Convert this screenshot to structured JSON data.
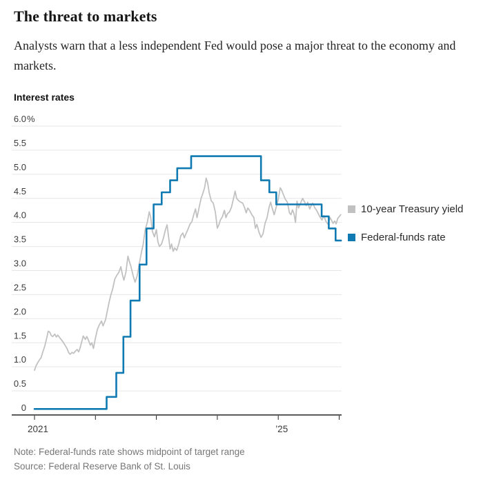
{
  "header": {
    "title": "The threat to markets",
    "subtitle": "Analysts warn that a less independent Fed would pose a major threat to the economy and markets."
  },
  "chart_label": "Interest rates",
  "footer": {
    "note": "Note: Federal-funds rate shows midpoint of target range",
    "source": "Source: Federal Reserve Bank of St. Louis"
  },
  "colors": {
    "treasury_line": "#c1c1c1",
    "fed_funds_line": "#0f7ab1",
    "grid_line": "#e6e6e6",
    "axis_line": "#222222"
  },
  "chart_data": {
    "type": "line",
    "title": "Interest rates",
    "ylabel": "Percent",
    "ylim": [
      0,
      6.0
    ],
    "grid": "horizontal",
    "legend_position": "right",
    "y_axis": {
      "ticks": [
        {
          "value": 6.0,
          "label": "6.0%"
        },
        {
          "value": 5.5,
          "label": "5.5"
        },
        {
          "value": 5.0,
          "label": "5.0"
        },
        {
          "value": 4.5,
          "label": "4.5"
        },
        {
          "value": 4.0,
          "label": "4.0"
        },
        {
          "value": 3.5,
          "label": "3.5"
        },
        {
          "value": 3.0,
          "label": "3.0"
        },
        {
          "value": 2.5,
          "label": "2.5"
        },
        {
          "value": 2.0,
          "label": "2.0"
        },
        {
          "value": 1.5,
          "label": "1.5"
        },
        {
          "value": 1.0,
          "label": "1.0"
        },
        {
          "value": 0.5,
          "label": "0.5"
        },
        {
          "value": 0,
          "label": "0"
        }
      ]
    },
    "x_axis": {
      "unit": "months_since_jan_2021",
      "start_year": 2021,
      "tick_years": [
        2021,
        2022,
        2023,
        2024,
        2025,
        2026
      ],
      "labels": [
        {
          "year": 2021,
          "text": "2021"
        },
        {
          "year": 2025,
          "text": "’25"
        }
      ]
    },
    "series": [
      {
        "name": "10-year Treasury yield",
        "color": "#c1c1c1",
        "points": [
          [
            0,
            0.93
          ],
          [
            0.3,
            1.02
          ],
          [
            0.6,
            1.08
          ],
          [
            1,
            1.15
          ],
          [
            1.3,
            1.19
          ],
          [
            1.6,
            1.3
          ],
          [
            2,
            1.42
          ],
          [
            2.4,
            1.6
          ],
          [
            2.7,
            1.74
          ],
          [
            3,
            1.72
          ],
          [
            3.3,
            1.65
          ],
          [
            3.6,
            1.63
          ],
          [
            4,
            1.68
          ],
          [
            4.3,
            1.62
          ],
          [
            4.6,
            1.66
          ],
          [
            5,
            1.6
          ],
          [
            5.3,
            1.56
          ],
          [
            5.6,
            1.52
          ],
          [
            6,
            1.45
          ],
          [
            6.4,
            1.38
          ],
          [
            6.7,
            1.3
          ],
          [
            7,
            1.26
          ],
          [
            7.4,
            1.3
          ],
          [
            7.7,
            1.28
          ],
          [
            8,
            1.32
          ],
          [
            8.4,
            1.36
          ],
          [
            8.7,
            1.31
          ],
          [
            9,
            1.4
          ],
          [
            9.3,
            1.52
          ],
          [
            9.6,
            1.64
          ],
          [
            10,
            1.57
          ],
          [
            10.3,
            1.63
          ],
          [
            10.6,
            1.56
          ],
          [
            11,
            1.45
          ],
          [
            11.3,
            1.5
          ],
          [
            11.6,
            1.38
          ],
          [
            12,
            1.6
          ],
          [
            12.4,
            1.78
          ],
          [
            12.8,
            1.88
          ],
          [
            13.2,
            1.95
          ],
          [
            13.5,
            1.85
          ],
          [
            14,
            1.98
          ],
          [
            14.3,
            2.14
          ],
          [
            14.7,
            2.35
          ],
          [
            15,
            2.48
          ],
          [
            15.4,
            2.62
          ],
          [
            15.8,
            2.82
          ],
          [
            16.2,
            2.9
          ],
          [
            16.6,
            2.96
          ],
          [
            17,
            3.08
          ],
          [
            17.3,
            2.92
          ],
          [
            17.6,
            2.8
          ],
          [
            18,
            2.96
          ],
          [
            18.4,
            3.3
          ],
          [
            18.7,
            3.18
          ],
          [
            19,
            3.08
          ],
          [
            19.4,
            2.9
          ],
          [
            19.8,
            2.76
          ],
          [
            20.2,
            2.88
          ],
          [
            20.6,
            3.12
          ],
          [
            21,
            3.35
          ],
          [
            21.4,
            3.55
          ],
          [
            21.8,
            3.85
          ],
          [
            22.2,
            4.0
          ],
          [
            22.6,
            4.22
          ],
          [
            22.9,
            4.1
          ],
          [
            23.2,
            3.82
          ],
          [
            23.6,
            3.7
          ],
          [
            24,
            3.85
          ],
          [
            24.3,
            3.6
          ],
          [
            24.6,
            3.5
          ],
          [
            25,
            3.55
          ],
          [
            25.4,
            3.68
          ],
          [
            25.8,
            3.85
          ],
          [
            26.1,
            3.95
          ],
          [
            26.4,
            3.7
          ],
          [
            26.7,
            3.45
          ],
          [
            27,
            3.55
          ],
          [
            27.3,
            3.4
          ],
          [
            27.6,
            3.47
          ],
          [
            28,
            3.42
          ],
          [
            28.4,
            3.55
          ],
          [
            28.8,
            3.72
          ],
          [
            29.2,
            3.78
          ],
          [
            29.5,
            3.68
          ],
          [
            29.8,
            3.76
          ],
          [
            30.2,
            3.85
          ],
          [
            30.6,
            3.96
          ],
          [
            31,
            4.02
          ],
          [
            31.4,
            4.18
          ],
          [
            31.7,
            4.28
          ],
          [
            32,
            4.1
          ],
          [
            32.4,
            4.3
          ],
          [
            32.8,
            4.5
          ],
          [
            33.2,
            4.62
          ],
          [
            33.5,
            4.72
          ],
          [
            33.8,
            4.92
          ],
          [
            34.1,
            4.82
          ],
          [
            34.4,
            4.62
          ],
          [
            34.8,
            4.45
          ],
          [
            35.2,
            4.4
          ],
          [
            35.6,
            4.22
          ],
          [
            36,
            3.88
          ],
          [
            36.3,
            3.95
          ],
          [
            36.6,
            4.05
          ],
          [
            37,
            4.12
          ],
          [
            37.4,
            4.25
          ],
          [
            37.7,
            4.1
          ],
          [
            38,
            4.18
          ],
          [
            38.4,
            4.22
          ],
          [
            38.8,
            4.32
          ],
          [
            39.2,
            4.5
          ],
          [
            39.5,
            4.65
          ],
          [
            39.8,
            4.5
          ],
          [
            40.2,
            4.45
          ],
          [
            40.6,
            4.42
          ],
          [
            41,
            4.4
          ],
          [
            41.4,
            4.3
          ],
          [
            41.7,
            4.2
          ],
          [
            42,
            4.3
          ],
          [
            42.4,
            4.24
          ],
          [
            42.8,
            4.16
          ],
          [
            43.2,
            4.1
          ],
          [
            43.5,
            3.88
          ],
          [
            43.8,
            3.96
          ],
          [
            44.2,
            3.8
          ],
          [
            44.6,
            3.69
          ],
          [
            45,
            3.76
          ],
          [
            45.4,
            3.98
          ],
          [
            45.8,
            4.1
          ],
          [
            46.2,
            4.32
          ],
          [
            46.5,
            4.42
          ],
          [
            46.8,
            4.3
          ],
          [
            47.2,
            4.16
          ],
          [
            47.6,
            4.32
          ],
          [
            48,
            4.48
          ],
          [
            48.4,
            4.72
          ],
          [
            48.7,
            4.66
          ],
          [
            49,
            4.58
          ],
          [
            49.4,
            4.48
          ],
          [
            49.8,
            4.42
          ],
          [
            50.2,
            4.2
          ],
          [
            50.5,
            4.16
          ],
          [
            50.8,
            4.26
          ],
          [
            51.1,
            4.18
          ],
          [
            51.4,
            4.0
          ],
          [
            51.7,
            4.44
          ],
          [
            52,
            4.3
          ],
          [
            52.4,
            4.4
          ],
          [
            52.8,
            4.5
          ],
          [
            53.2,
            4.42
          ],
          [
            53.5,
            4.35
          ],
          [
            53.8,
            4.42
          ],
          [
            54.2,
            4.28
          ],
          [
            54.5,
            4.35
          ],
          [
            54.8,
            4.4
          ],
          [
            55.2,
            4.3
          ],
          [
            55.5,
            4.26
          ],
          [
            55.8,
            4.2
          ],
          [
            56.2,
            4.12
          ],
          [
            56.6,
            4.05
          ],
          [
            57,
            4.14
          ],
          [
            57.4,
            4.02
          ],
          [
            57.8,
            3.96
          ],
          [
            58.2,
            4.1
          ],
          [
            58.5,
            4.04
          ],
          [
            58.8,
            3.98
          ],
          [
            59.1,
            4.03
          ],
          [
            59.4,
            3.97
          ],
          [
            59.7,
            4.08
          ],
          [
            60,
            4.12
          ],
          [
            60.3,
            4.16
          ]
        ]
      },
      {
        "name": "Federal-funds rate",
        "color": "#0f7ab1",
        "points": [
          [
            0,
            0.125
          ],
          [
            14.2,
            0.125
          ],
          [
            14.2,
            0.375
          ],
          [
            16.1,
            0.375
          ],
          [
            16.1,
            0.875
          ],
          [
            17.5,
            0.875
          ],
          [
            17.5,
            1.625
          ],
          [
            18.9,
            1.625
          ],
          [
            18.9,
            2.375
          ],
          [
            20.7,
            2.375
          ],
          [
            20.7,
            3.125
          ],
          [
            22.05,
            3.125
          ],
          [
            22.05,
            3.875
          ],
          [
            23.45,
            3.875
          ],
          [
            23.45,
            4.375
          ],
          [
            25.05,
            4.375
          ],
          [
            25.05,
            4.625
          ],
          [
            26.7,
            4.625
          ],
          [
            26.7,
            4.875
          ],
          [
            28.1,
            4.875
          ],
          [
            28.1,
            5.125
          ],
          [
            30.85,
            5.125
          ],
          [
            30.85,
            5.375
          ],
          [
            44.6,
            5.375
          ],
          [
            44.6,
            4.875
          ],
          [
            46.25,
            4.875
          ],
          [
            46.25,
            4.625
          ],
          [
            47.6,
            4.625
          ],
          [
            47.6,
            4.375
          ],
          [
            56.55,
            4.375
          ],
          [
            56.55,
            4.125
          ],
          [
            57.95,
            4.125
          ],
          [
            57.95,
            3.875
          ],
          [
            59.3,
            3.875
          ],
          [
            59.3,
            3.625
          ],
          [
            60.35,
            3.625
          ]
        ]
      }
    ]
  }
}
